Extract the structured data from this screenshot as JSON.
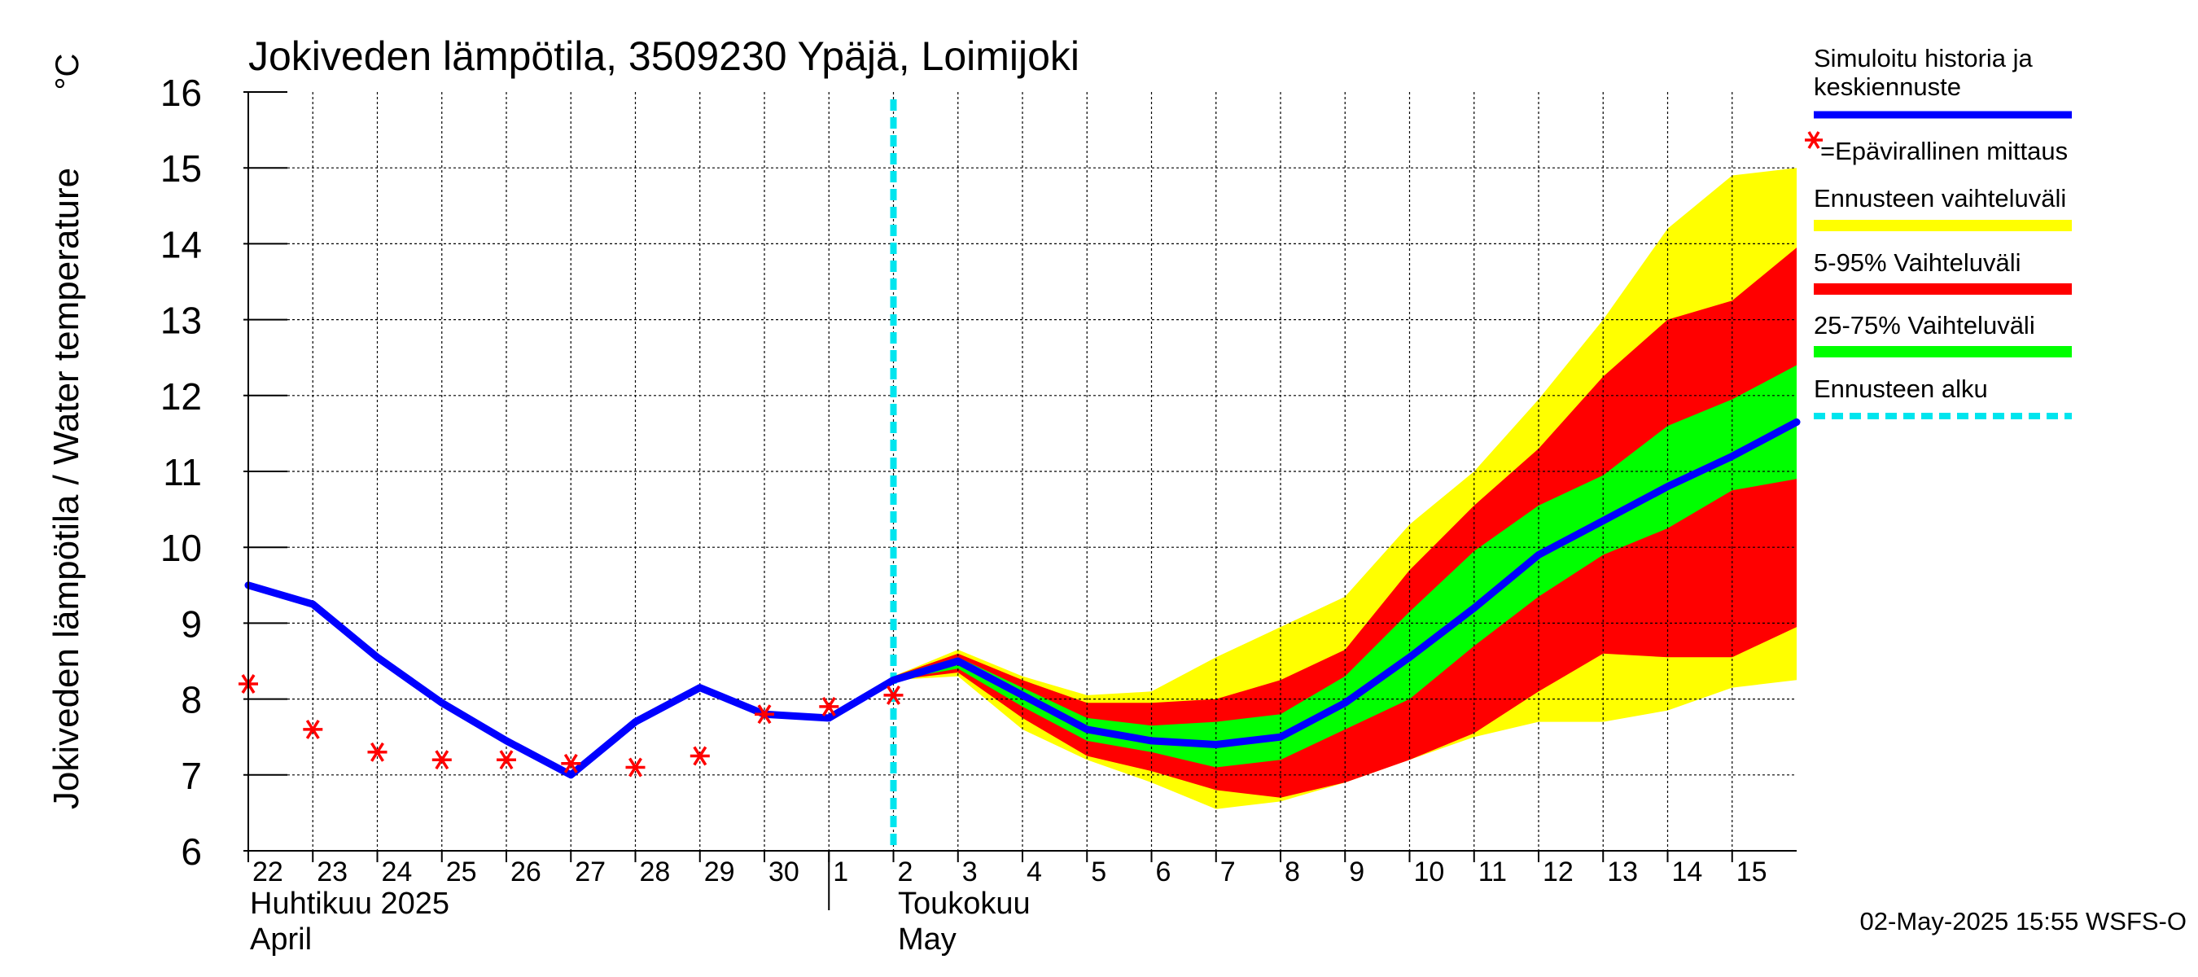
{
  "chart_data": {
    "type": "line",
    "title": "Jokiveden lämpötila, 3509230 Ypäjä, Loimijoki",
    "ylabel": "Jokiveden lämpötila / Water temperature",
    "yunit": "°C",
    "ylim": [
      6,
      16
    ],
    "yticks": [
      "6",
      "7",
      "8",
      "9",
      "10",
      "11",
      "12",
      "13",
      "14",
      "15",
      "16"
    ],
    "xlim": [
      "2025-04-22",
      "2025-05-15"
    ],
    "xticks": [
      "22",
      "23",
      "24",
      "25",
      "26",
      "27",
      "28",
      "29",
      "30",
      "1",
      "2",
      "3",
      "4",
      "5",
      "6",
      "7",
      "8",
      "9",
      "10",
      "11",
      "12",
      "13",
      "14",
      "15"
    ],
    "months": [
      {
        "fi": "Huhtikuu  2025",
        "en": "April"
      },
      {
        "fi": "Toukokuu",
        "en": "May"
      }
    ],
    "grid": true,
    "forecast_start": "2025-05-02",
    "x": [
      "2025-04-22",
      "2025-04-23",
      "2025-04-24",
      "2025-04-25",
      "2025-04-26",
      "2025-04-27",
      "2025-04-28",
      "2025-04-29",
      "2025-04-30",
      "2025-05-01",
      "2025-05-02",
      "2025-05-03",
      "2025-05-04",
      "2025-05-05",
      "2025-05-06",
      "2025-05-07",
      "2025-05-08",
      "2025-05-09",
      "2025-05-10",
      "2025-05-11",
      "2025-05-12",
      "2025-05-13",
      "2025-05-14",
      "2025-05-15",
      "2025-05-16"
    ],
    "series": [
      {
        "name": "Simuloitu historia ja keskiennuste",
        "color": "#0000ff",
        "values": [
          9.5,
          9.25,
          8.55,
          7.95,
          7.45,
          7.0,
          7.7,
          8.15,
          7.8,
          7.75,
          8.25,
          8.5,
          8.05,
          7.6,
          7.45,
          7.4,
          7.5,
          7.95,
          8.55,
          9.2,
          9.9,
          10.35,
          10.8,
          11.2,
          11.65
        ]
      }
    ],
    "measurements": {
      "name": "=Epävirallinen mittaus",
      "color": "#ff0000",
      "x": [
        "2025-04-22",
        "2025-04-23",
        "2025-04-24",
        "2025-04-25",
        "2025-04-26",
        "2025-04-27",
        "2025-04-28",
        "2025-04-29",
        "2025-04-30",
        "2025-05-01",
        "2025-05-02"
      ],
      "values": [
        8.2,
        7.6,
        7.3,
        7.2,
        7.2,
        7.15,
        7.1,
        7.25,
        7.8,
        7.9,
        8.05
      ]
    },
    "bands": {
      "x": [
        "2025-05-02",
        "2025-05-03",
        "2025-05-04",
        "2025-05-05",
        "2025-05-06",
        "2025-05-07",
        "2025-05-08",
        "2025-05-09",
        "2025-05-10",
        "2025-05-11",
        "2025-05-12",
        "2025-05-13",
        "2025-05-14",
        "2025-05-15",
        "2025-05-16"
      ],
      "ennuste": {
        "name": "Ennusteen vaihteluväli",
        "color": "#ffff00",
        "lower": [
          8.25,
          8.3,
          7.6,
          7.2,
          6.9,
          6.55,
          6.65,
          6.9,
          7.2,
          7.5,
          7.7,
          7.7,
          7.85,
          8.15,
          8.25
        ],
        "upper": [
          8.3,
          8.65,
          8.3,
          8.05,
          8.1,
          8.55,
          8.95,
          9.35,
          10.3,
          11.0,
          11.95,
          13.0,
          14.2,
          14.9,
          15.0
        ]
      },
      "p5_95": {
        "name": "5-95% Vaihteluväli",
        "color": "#ff0000",
        "lower": [
          8.25,
          8.35,
          7.75,
          7.25,
          7.05,
          6.8,
          6.7,
          6.9,
          7.2,
          7.55,
          8.1,
          8.6,
          8.55,
          8.55,
          8.95
        ],
        "upper": [
          8.3,
          8.6,
          8.25,
          7.95,
          7.95,
          8.0,
          8.25,
          8.65,
          9.7,
          10.55,
          11.3,
          12.25,
          13.0,
          13.25,
          13.95
        ]
      },
      "p25_75": {
        "name": "25-75% Vaihteluväli",
        "color": "#00ff00",
        "lower": [
          8.25,
          8.4,
          7.9,
          7.45,
          7.3,
          7.1,
          7.2,
          7.6,
          8.0,
          8.7,
          9.35,
          9.9,
          10.25,
          10.75,
          10.9
        ],
        "upper": [
          8.3,
          8.55,
          8.15,
          7.75,
          7.65,
          7.7,
          7.8,
          8.3,
          9.15,
          9.95,
          10.55,
          10.95,
          11.6,
          11.95,
          12.4
        ]
      }
    },
    "legend": {
      "placement": "right",
      "items": [
        {
          "label": "Simuloitu historia ja keskiennuste",
          "color": "#0000ff",
          "style": "line"
        },
        {
          "label": "=Epävirallinen mittaus",
          "color": "#ff0000",
          "style": "marker"
        },
        {
          "label": "Ennusteen vaihteluväli",
          "color": "#ffff00",
          "style": "thick"
        },
        {
          "label": "5-95% Vaihteluväli",
          "color": "#ff0000",
          "style": "thick"
        },
        {
          "label": "25-75% Vaihteluväli",
          "color": "#00ff00",
          "style": "thick"
        },
        {
          "label": "Ennusteen alku",
          "color": "#00e5ee",
          "style": "dashed"
        }
      ]
    },
    "footer": "02-May-2025 15:55 WSFS-O"
  }
}
